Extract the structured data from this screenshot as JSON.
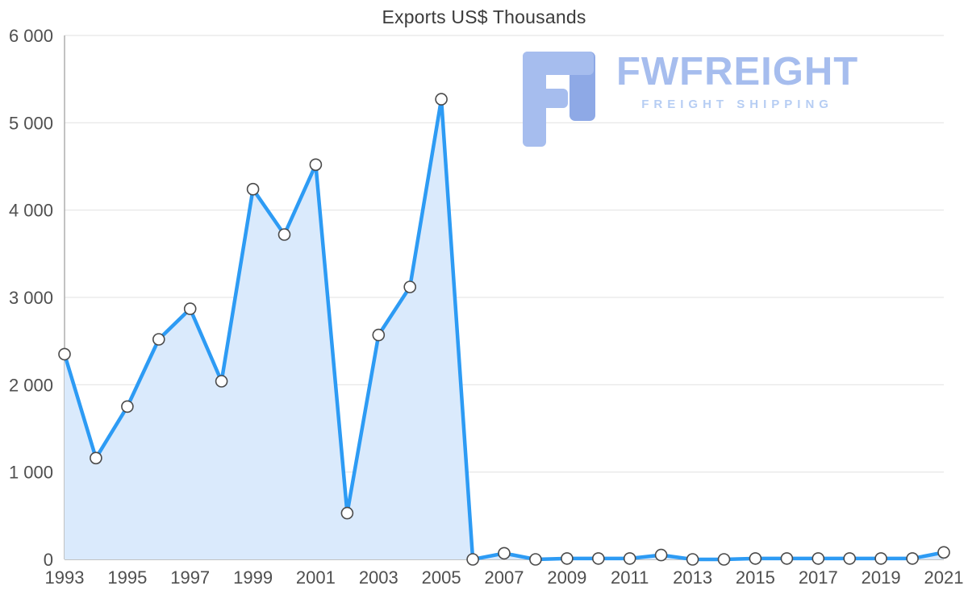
{
  "title": "Exports US$ Thousands",
  "logo": {
    "name": "FWFREIGHT",
    "tagline": "FREIGHT SHIPPING"
  },
  "colors": {
    "line": "#2d9bf4",
    "fill": "#daeafc",
    "marker_fill": "#ffffff",
    "marker_stroke": "#4a4a4a",
    "grid": "#e1e1e1",
    "axis": "#aeaeae",
    "tick_text": "#4f4f4f",
    "title_text": "#3b3b3b",
    "logo_main": "#a6bdee",
    "logo_dark": "#8ea9e6",
    "logo_tagline": "#b6cdf3"
  },
  "chart_data": {
    "type": "area",
    "title": "Exports US$ Thousands",
    "xlabel": "",
    "ylabel": "",
    "x": [
      1993,
      1994,
      1995,
      1996,
      1997,
      1998,
      1999,
      2000,
      2001,
      2002,
      2003,
      2004,
      2005,
      2006,
      2007,
      2008,
      2009,
      2010,
      2011,
      2012,
      2013,
      2014,
      2015,
      2016,
      2017,
      2018,
      2019,
      2020,
      2021
    ],
    "values": [
      2350,
      1160,
      1750,
      2520,
      2870,
      2040,
      4240,
      3720,
      4520,
      530,
      2570,
      3120,
      5270,
      0,
      70,
      0,
      10,
      10,
      10,
      50,
      0,
      0,
      10,
      10,
      10,
      10,
      10,
      10,
      80
    ],
    "ylim": [
      0,
      6000
    ],
    "y_ticks": [
      0,
      1000,
      2000,
      3000,
      4000,
      5000,
      6000
    ],
    "y_tick_labels": [
      "0",
      "1 000",
      "2 000",
      "3 000",
      "4 000",
      "5 000",
      "6 000"
    ],
    "x_tick_labels": [
      "1993",
      "1995",
      "1997",
      "1999",
      "2001",
      "2003",
      "2005",
      "2007",
      "2009",
      "2011",
      "2013",
      "2015",
      "2017",
      "2019",
      "2021"
    ],
    "x_tick_step": 2,
    "grid": true,
    "legend_position": "none"
  }
}
